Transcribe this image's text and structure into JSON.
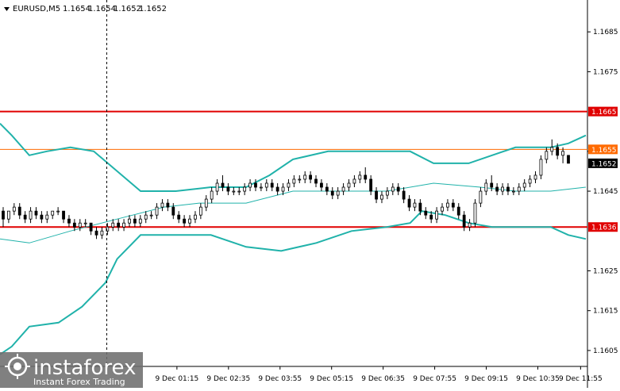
{
  "chart_data": {
    "type": "candlestick",
    "symbol_title": "EURUSD,M5",
    "ohlc_header": [
      "1.1654",
      "1.1654",
      "1.1652",
      "1.1652"
    ],
    "y_ticks": [
      "1.1685",
      "1.1675",
      "1.1655",
      "1.1645",
      "1.1625",
      "1.1615",
      "1.1605"
    ],
    "ylim": [
      1.1601,
      1.1693
    ],
    "x_tick_labels": [
      "9 Dec 01:15",
      "9 Dec 02:35",
      "9 Dec 03:55",
      "9 Dec 05:15",
      "9 Dec 06:35",
      "9 Dec 07:55",
      "9 Dec 09:15",
      "9 Dec 10:35",
      "9 Dec 11:55"
    ],
    "x_tick_fracs": [
      0.302,
      0.39,
      0.478,
      0.566,
      0.654,
      0.742,
      0.83,
      0.918,
      0.991
    ],
    "horizontal_levels": [
      {
        "label": "1.1665",
        "value": 1.1665,
        "color": "#e00000",
        "style": "thick"
      },
      {
        "label": "1.1655",
        "value": 1.16555,
        "color": "#ff6a00",
        "style": "thin"
      },
      {
        "label": "1.1636",
        "value": 1.1636,
        "color": "#e00000",
        "style": "thick"
      }
    ],
    "current_price": {
      "label": "1.1652",
      "value": 1.1652
    },
    "vertical_marker_frac": 0.182,
    "bollinger": {
      "color": "#20b2aa",
      "upper": [
        [
          0,
          1.1662
        ],
        [
          0.02,
          1.1659
        ],
        [
          0.05,
          1.1654
        ],
        [
          0.08,
          1.1655
        ],
        [
          0.12,
          1.1656
        ],
        [
          0.16,
          1.1655
        ],
        [
          0.2,
          1.165
        ],
        [
          0.24,
          1.1645
        ],
        [
          0.3,
          1.1645
        ],
        [
          0.36,
          1.1646
        ],
        [
          0.42,
          1.1646
        ],
        [
          0.46,
          1.1649
        ],
        [
          0.5,
          1.1653
        ],
        [
          0.56,
          1.1655
        ],
        [
          0.62,
          1.1655
        ],
        [
          0.7,
          1.1655
        ],
        [
          0.74,
          1.1652
        ],
        [
          0.8,
          1.1652
        ],
        [
          0.84,
          1.1654
        ],
        [
          0.88,
          1.1656
        ],
        [
          0.94,
          1.1656
        ],
        [
          0.97,
          1.1657
        ],
        [
          1,
          1.1659
        ]
      ],
      "middle": [
        [
          0,
          1.1633
        ],
        [
          0.05,
          1.1632
        ],
        [
          0.12,
          1.1635
        ],
        [
          0.2,
          1.1638
        ],
        [
          0.28,
          1.1641
        ],
        [
          0.34,
          1.1642
        ],
        [
          0.42,
          1.1642
        ],
        [
          0.5,
          1.1645
        ],
        [
          0.58,
          1.1645
        ],
        [
          0.66,
          1.1645
        ],
        [
          0.74,
          1.1647
        ],
        [
          0.82,
          1.1646
        ],
        [
          0.88,
          1.1645
        ],
        [
          0.94,
          1.1645
        ],
        [
          1,
          1.1646
        ]
      ],
      "lower": [
        [
          0,
          1.1604
        ],
        [
          0.02,
          1.1606
        ],
        [
          0.05,
          1.1611
        ],
        [
          0.1,
          1.1612
        ],
        [
          0.14,
          1.1616
        ],
        [
          0.18,
          1.1622
        ],
        [
          0.2,
          1.1628
        ],
        [
          0.24,
          1.1634
        ],
        [
          0.3,
          1.1634
        ],
        [
          0.36,
          1.1634
        ],
        [
          0.42,
          1.1631
        ],
        [
          0.48,
          1.163
        ],
        [
          0.54,
          1.1632
        ],
        [
          0.6,
          1.1635
        ],
        [
          0.66,
          1.1636
        ],
        [
          0.7,
          1.1637
        ],
        [
          0.72,
          1.164
        ],
        [
          0.76,
          1.1639
        ],
        [
          0.8,
          1.1637
        ],
        [
          0.84,
          1.1636
        ],
        [
          0.86,
          1.1636
        ],
        [
          0.9,
          1.1636
        ],
        [
          0.94,
          1.1636
        ],
        [
          0.97,
          1.1634
        ],
        [
          1,
          1.1633
        ]
      ]
    },
    "candles": [
      [
        1.164,
        1.1641,
        1.1636,
        1.1638
      ],
      [
        1.1638,
        1.164,
        1.1637,
        1.164
      ],
      [
        1.164,
        1.1642,
        1.1639,
        1.1641
      ],
      [
        1.1641,
        1.1642,
        1.1638,
        1.1639
      ],
      [
        1.1639,
        1.164,
        1.1637,
        1.1638
      ],
      [
        1.1638,
        1.1641,
        1.1637,
        1.164
      ],
      [
        1.164,
        1.1641,
        1.1638,
        1.1639
      ],
      [
        1.1639,
        1.164,
        1.1637,
        1.1638
      ],
      [
        1.1638,
        1.164,
        1.1637,
        1.1639
      ],
      [
        1.1639,
        1.164,
        1.1638,
        1.164
      ],
      [
        1.164,
        1.1641,
        1.1639,
        1.164
      ],
      [
        1.164,
        1.164,
        1.1637,
        1.1638
      ],
      [
        1.1638,
        1.1639,
        1.1636,
        1.1637
      ],
      [
        1.1637,
        1.1638,
        1.1635,
        1.1636
      ],
      [
        1.1636,
        1.1638,
        1.1635,
        1.1637
      ],
      [
        1.1637,
        1.1638,
        1.1636,
        1.1637
      ],
      [
        1.1637,
        1.1637,
        1.1634,
        1.1635
      ],
      [
        1.1635,
        1.1636,
        1.1633,
        1.1634
      ],
      [
        1.1634,
        1.1636,
        1.1633,
        1.1635
      ],
      [
        1.1635,
        1.1637,
        1.1634,
        1.1636
      ],
      [
        1.1636,
        1.1638,
        1.1635,
        1.1637
      ],
      [
        1.1637,
        1.1638,
        1.1635,
        1.1636
      ],
      [
        1.1636,
        1.1638,
        1.1635,
        1.1637
      ],
      [
        1.1637,
        1.1639,
        1.1636,
        1.1638
      ],
      [
        1.1638,
        1.1639,
        1.1636,
        1.1637
      ],
      [
        1.1637,
        1.1639,
        1.1636,
        1.1638
      ],
      [
        1.1638,
        1.164,
        1.1637,
        1.1639
      ],
      [
        1.1639,
        1.164,
        1.1638,
        1.1639
      ],
      [
        1.1639,
        1.1642,
        1.1638,
        1.1641
      ],
      [
        1.1641,
        1.1643,
        1.164,
        1.1642
      ],
      [
        1.1642,
        1.1643,
        1.164,
        1.1641
      ],
      [
        1.1641,
        1.1642,
        1.1638,
        1.1639
      ],
      [
        1.1639,
        1.164,
        1.1637,
        1.1638
      ],
      [
        1.1638,
        1.1639,
        1.1636,
        1.1637
      ],
      [
        1.1637,
        1.1639,
        1.1636,
        1.1638
      ],
      [
        1.1638,
        1.164,
        1.1637,
        1.1639
      ],
      [
        1.1639,
        1.1642,
        1.1638,
        1.1641
      ],
      [
        1.1641,
        1.1644,
        1.164,
        1.1643
      ],
      [
        1.1643,
        1.1646,
        1.1642,
        1.1645
      ],
      [
        1.1645,
        1.1648,
        1.1644,
        1.1647
      ],
      [
        1.1647,
        1.1649,
        1.1645,
        1.1646
      ],
      [
        1.1646,
        1.1647,
        1.1644,
        1.1645
      ],
      [
        1.1645,
        1.1646,
        1.1644,
        1.1645
      ],
      [
        1.1645,
        1.1646,
        1.1644,
        1.1645
      ],
      [
        1.1645,
        1.1647,
        1.1644,
        1.1646
      ],
      [
        1.1646,
        1.1648,
        1.1645,
        1.1647
      ],
      [
        1.1647,
        1.1648,
        1.1645,
        1.1646
      ],
      [
        1.1646,
        1.1647,
        1.1645,
        1.1646
      ],
      [
        1.1646,
        1.1648,
        1.1645,
        1.1647
      ],
      [
        1.1647,
        1.1648,
        1.1645,
        1.1646
      ],
      [
        1.1646,
        1.1647,
        1.1644,
        1.1645
      ],
      [
        1.1645,
        1.1647,
        1.1644,
        1.1646
      ],
      [
        1.1646,
        1.1648,
        1.1645,
        1.1647
      ],
      [
        1.1647,
        1.1649,
        1.1646,
        1.1648
      ],
      [
        1.1648,
        1.1649,
        1.1647,
        1.1648
      ],
      [
        1.1648,
        1.165,
        1.1647,
        1.1649
      ],
      [
        1.1649,
        1.165,
        1.1647,
        1.1648
      ],
      [
        1.1648,
        1.1649,
        1.1646,
        1.1647
      ],
      [
        1.1647,
        1.1648,
        1.1645,
        1.1646
      ],
      [
        1.1646,
        1.1647,
        1.1644,
        1.1645
      ],
      [
        1.1645,
        1.1646,
        1.1643,
        1.1644
      ],
      [
        1.1644,
        1.1646,
        1.1643,
        1.1645
      ],
      [
        1.1645,
        1.1647,
        1.1644,
        1.1646
      ],
      [
        1.1646,
        1.1648,
        1.1645,
        1.1647
      ],
      [
        1.1647,
        1.1649,
        1.1646,
        1.1648
      ],
      [
        1.1648,
        1.165,
        1.1647,
        1.1649
      ],
      [
        1.1649,
        1.1651,
        1.1647,
        1.1648
      ],
      [
        1.1648,
        1.1649,
        1.1644,
        1.1645
      ],
      [
        1.1645,
        1.1646,
        1.1642,
        1.1643
      ],
      [
        1.1643,
        1.1645,
        1.1642,
        1.1644
      ],
      [
        1.1644,
        1.1646,
        1.1643,
        1.1645
      ],
      [
        1.1645,
        1.1647,
        1.1644,
        1.1646
      ],
      [
        1.1646,
        1.1647,
        1.1644,
        1.1645
      ],
      [
        1.1645,
        1.1646,
        1.1642,
        1.1643
      ],
      [
        1.1643,
        1.1644,
        1.164,
        1.1641
      ],
      [
        1.1641,
        1.1643,
        1.164,
        1.1642
      ],
      [
        1.1642,
        1.1643,
        1.1639,
        1.164
      ],
      [
        1.164,
        1.1641,
        1.1638,
        1.1639
      ],
      [
        1.1639,
        1.164,
        1.1637,
        1.1638
      ],
      [
        1.1638,
        1.1641,
        1.1637,
        1.164
      ],
      [
        1.164,
        1.1642,
        1.1639,
        1.1641
      ],
      [
        1.1641,
        1.1643,
        1.164,
        1.1642
      ],
      [
        1.1642,
        1.1643,
        1.164,
        1.1641
      ],
      [
        1.1641,
        1.1642,
        1.1638,
        1.1639
      ],
      [
        1.1639,
        1.164,
        1.1635,
        1.1636
      ],
      [
        1.1636,
        1.1638,
        1.1635,
        1.1637
      ],
      [
        1.1637,
        1.1643,
        1.1636,
        1.1642
      ],
      [
        1.1642,
        1.1646,
        1.1641,
        1.1645
      ],
      [
        1.1645,
        1.1648,
        1.1644,
        1.1647
      ],
      [
        1.1647,
        1.1649,
        1.1645,
        1.1646
      ],
      [
        1.1646,
        1.1647,
        1.1644,
        1.1645
      ],
      [
        1.1645,
        1.1647,
        1.1644,
        1.1646
      ],
      [
        1.1646,
        1.1647,
        1.1644,
        1.1645
      ],
      [
        1.1645,
        1.1646,
        1.1644,
        1.1645
      ],
      [
        1.1645,
        1.1647,
        1.1644,
        1.1646
      ],
      [
        1.1646,
        1.1648,
        1.1645,
        1.1647
      ],
      [
        1.1647,
        1.1649,
        1.1646,
        1.1648
      ],
      [
        1.1648,
        1.165,
        1.1647,
        1.1649
      ],
      [
        1.1649,
        1.1654,
        1.1648,
        1.1653
      ],
      [
        1.1653,
        1.1656,
        1.1652,
        1.1655
      ],
      [
        1.1655,
        1.1658,
        1.1654,
        1.1656
      ],
      [
        1.1656,
        1.1657,
        1.1653,
        1.1654
      ],
      [
        1.1654,
        1.1656,
        1.1652,
        1.1655
      ],
      [
        1.1654,
        1.1654,
        1.1652,
        1.1652
      ]
    ]
  },
  "brand": {
    "name": "instaforex",
    "tagline": "Instant Forex Trading"
  },
  "colors": {
    "axis": "#000000",
    "bollinger": "#20b2aa",
    "level_red": "#e00000",
    "level_orange": "#ff6a00",
    "candle": "#000000",
    "logo_bg": "#6e6e6e"
  }
}
